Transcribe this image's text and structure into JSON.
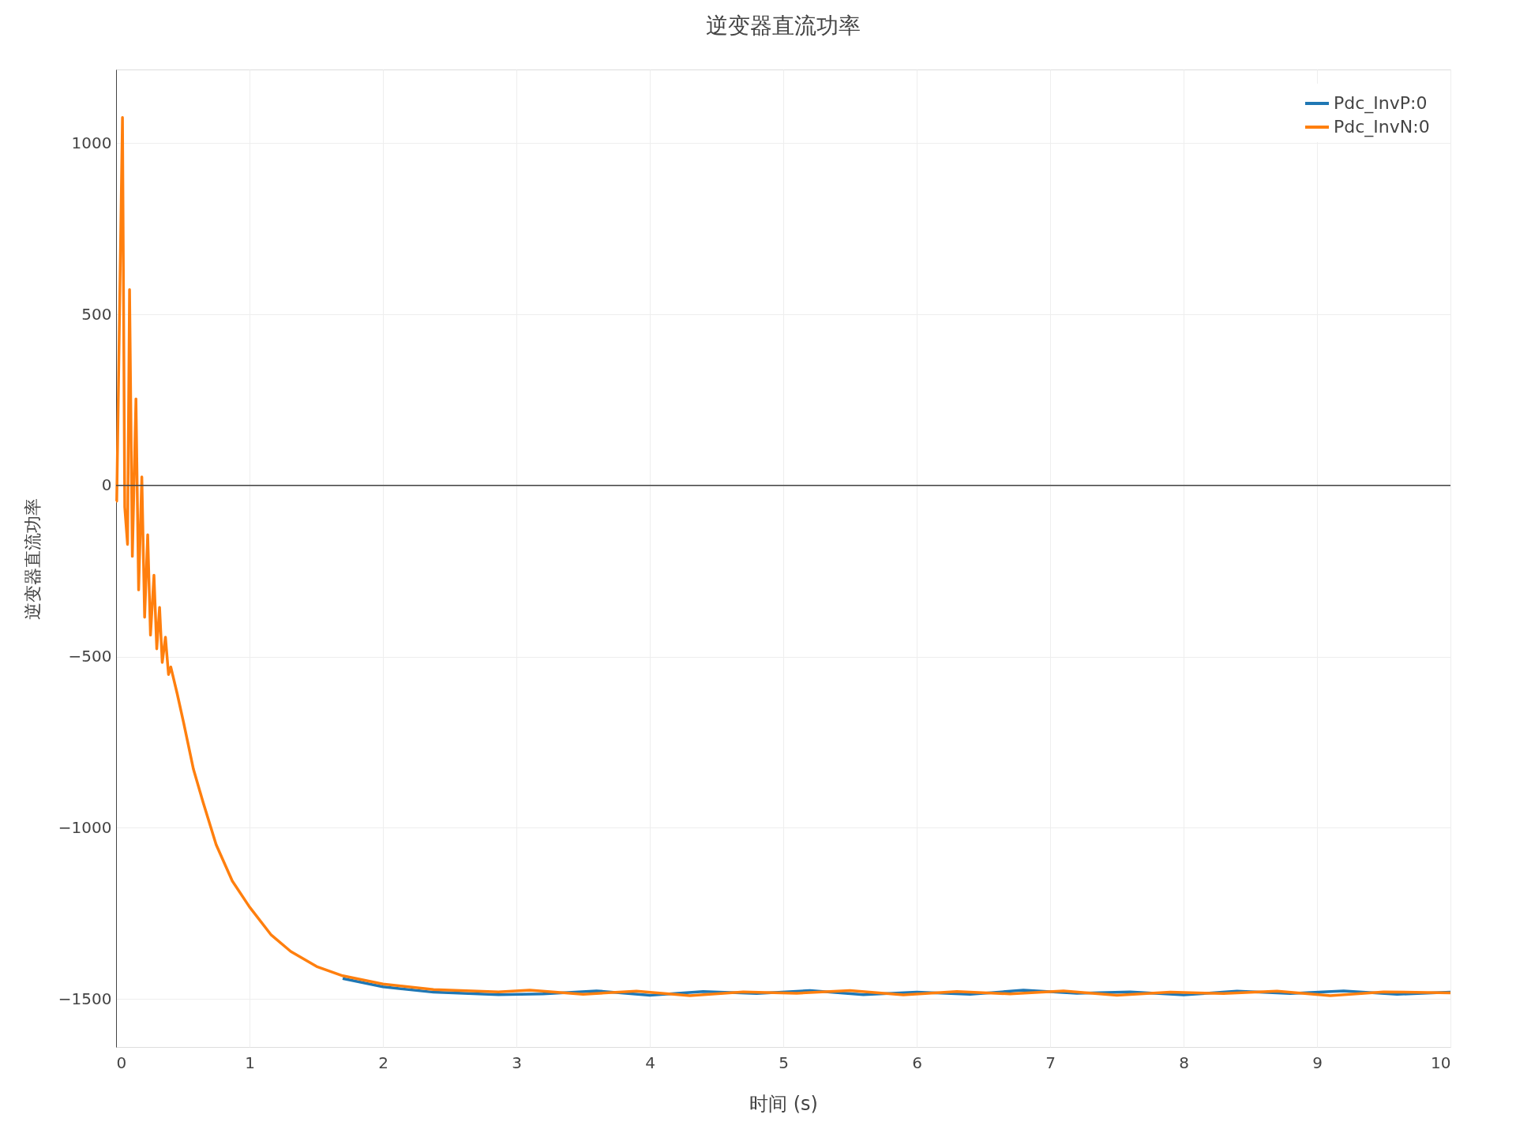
{
  "chart_data": {
    "type": "line",
    "title": "逆变器直流功率",
    "xlabel": "时间 (s)",
    "ylabel": "逆变器直流功率",
    "xlim": [
      0,
      10
    ],
    "xticks": [
      0,
      1,
      2,
      3,
      4,
      5,
      6,
      7,
      8,
      9,
      10
    ],
    "ylim": [
      -1640,
      1215
    ],
    "yticks": [
      -1500,
      -1000,
      -500,
      0,
      500,
      1000
    ],
    "grid": true,
    "legend": "top right",
    "line_style": "solid",
    "marker": "none",
    "ref_lines": [
      {
        "axis": "y",
        "value": 0,
        "color": "#444444"
      }
    ],
    "series": [
      {
        "name": "Pdc_InvP:0",
        "color": "#1f77b4",
        "x": [
          1.698,
          2.0,
          2.379,
          2.865,
          3.2,
          3.6,
          4.0,
          4.4,
          4.8,
          5.2,
          5.6,
          6.0,
          6.4,
          6.8,
          7.2,
          7.6,
          8.0,
          8.4,
          8.8,
          9.2,
          9.6,
          10.0
        ],
        "values": [
          -1440,
          -1464,
          -1480,
          -1487,
          -1485,
          -1476,
          -1489,
          -1478,
          -1484,
          -1475,
          -1487,
          -1480,
          -1486,
          -1474,
          -1483,
          -1479,
          -1488,
          -1477,
          -1484,
          -1476,
          -1486,
          -1480
        ]
      },
      {
        "name": "Pdc_InvN:0",
        "color": "#ff7f0e",
        "x": [
          0,
          0.005,
          0.048,
          0.065,
          0.086,
          0.101,
          0.122,
          0.149,
          0.169,
          0.193,
          0.214,
          0.237,
          0.258,
          0.284,
          0.305,
          0.326,
          0.346,
          0.37,
          0.393,
          0.41,
          0.458,
          0.507,
          0.58,
          0.652,
          0.75,
          0.871,
          1.0,
          1.163,
          1.309,
          1.503,
          1.698,
          2.0,
          2.379,
          2.865,
          3.1,
          3.5,
          3.9,
          4.3,
          4.7,
          5.1,
          5.5,
          5.9,
          6.3,
          6.7,
          7.1,
          7.5,
          7.9,
          8.3,
          8.7,
          9.1,
          9.5,
          10.0
        ],
        "values": [
          -46,
          -46,
          1075,
          -63,
          -172,
          572,
          -207,
          253,
          -305,
          25,
          -385,
          -144,
          -437,
          -262,
          -477,
          -356,
          -517,
          -443,
          -552,
          -530,
          -608,
          -694,
          -829,
          -925,
          -1049,
          -1155,
          -1231,
          -1313,
          -1361,
          -1405,
          -1432,
          -1456,
          -1472,
          -1479,
          -1474,
          -1486,
          -1477,
          -1490,
          -1479,
          -1483,
          -1475,
          -1488,
          -1478,
          -1485,
          -1476,
          -1489,
          -1480,
          -1484,
          -1477,
          -1490,
          -1479,
          -1482
        ]
      }
    ]
  }
}
